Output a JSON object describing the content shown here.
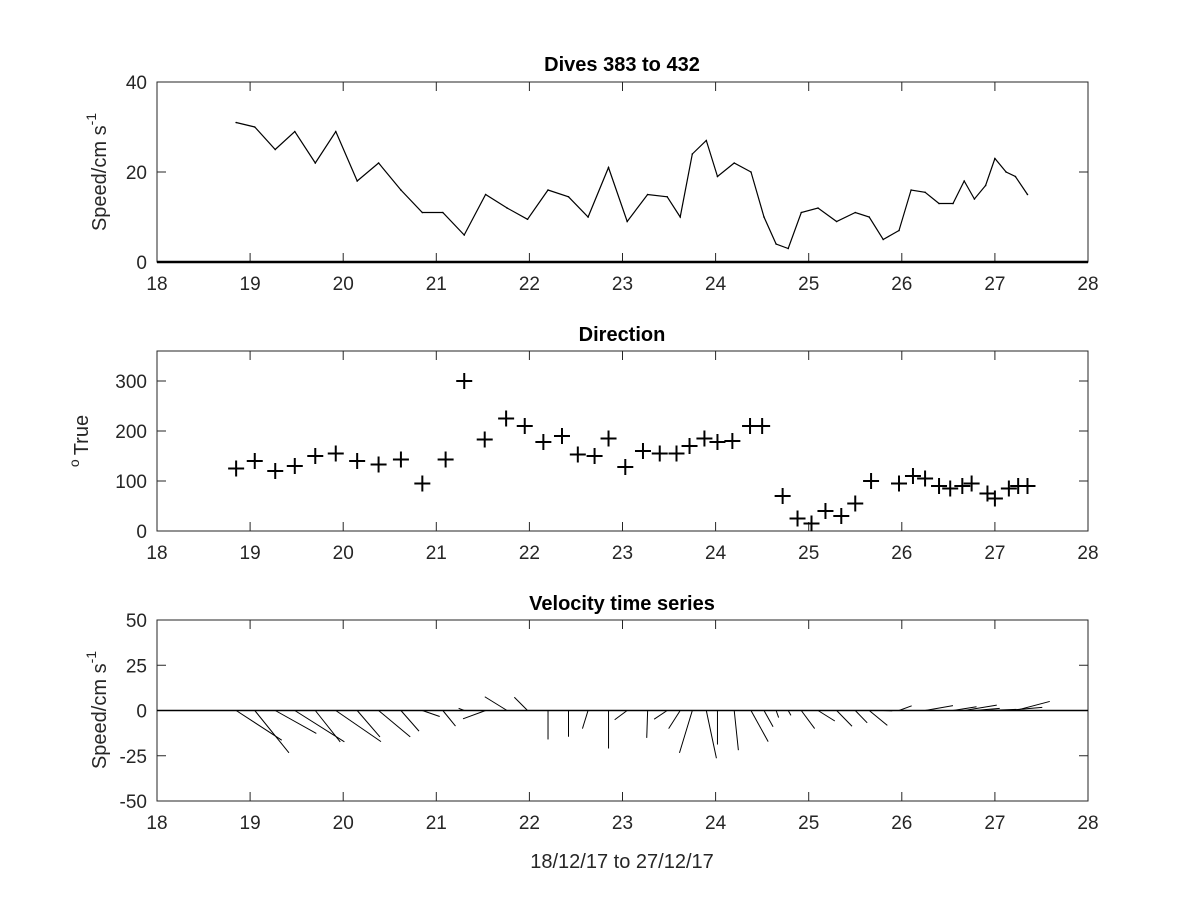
{
  "figure": {
    "background": "#ffffff",
    "line_color": "#000000",
    "axis_color": "#262626"
  },
  "chart_data": [
    {
      "type": "line",
      "title": "Dives 383 to 432",
      "xlabel": "",
      "ylabel": "Speed/cm s",
      "ylabel_superscript": "-1",
      "xlim": [
        18,
        28
      ],
      "ylim": [
        0,
        40
      ],
      "xticks": [
        18,
        19,
        20,
        21,
        22,
        23,
        24,
        25,
        26,
        27,
        28
      ],
      "yticks": [
        0,
        20,
        40
      ],
      "grid": false,
      "series": [
        {
          "x": [
            18.85,
            19.05,
            19.27,
            19.48,
            19.7,
            19.92,
            20.15,
            20.38,
            20.62,
            20.85,
            21.07,
            21.3,
            21.53,
            21.76,
            21.98,
            22.2,
            22.42,
            22.63,
            22.85,
            23.05,
            23.27,
            23.48,
            23.62,
            23.75,
            23.9,
            24.02,
            24.2,
            24.38,
            24.52,
            24.65,
            24.78,
            24.92,
            25.1,
            25.3,
            25.5,
            25.65,
            25.8,
            25.97,
            26.1,
            26.25,
            26.4,
            26.55,
            26.67,
            26.78,
            26.9,
            27.0,
            27.12,
            27.22,
            27.35
          ],
          "y": [
            31,
            30,
            25,
            29,
            22,
            29,
            18,
            22,
            16,
            11,
            11,
            6,
            15,
            12,
            9.5,
            16,
            14.5,
            10,
            21,
            9,
            15,
            14.5,
            10,
            24,
            27,
            19,
            22,
            20,
            10,
            4,
            3,
            11,
            12,
            9,
            11,
            10,
            5,
            7,
            16,
            15.5,
            13,
            13,
            18,
            14,
            17,
            23,
            20,
            19,
            15
          ]
        }
      ]
    },
    {
      "type": "scatter",
      "title": "Direction",
      "xlabel": "",
      "ylabel": "True",
      "ylabel_superscript": "o",
      "marker": "+",
      "xlim": [
        18,
        28
      ],
      "ylim": [
        0,
        360
      ],
      "xticks": [
        18,
        19,
        20,
        21,
        22,
        23,
        24,
        25,
        26,
        27,
        28
      ],
      "yticks": [
        0,
        100,
        200,
        300
      ],
      "grid": false,
      "series": [
        {
          "x": [
            18.85,
            19.05,
            19.27,
            19.48,
            19.7,
            19.92,
            20.15,
            20.38,
            20.62,
            20.85,
            21.1,
            21.3,
            21.52,
            21.75,
            21.95,
            22.15,
            22.35,
            22.52,
            22.7,
            22.85,
            23.03,
            23.22,
            23.4,
            23.58,
            23.72,
            23.88,
            24.02,
            24.18,
            24.37,
            24.5,
            24.72,
            24.88,
            25.03,
            25.18,
            25.35,
            25.5,
            25.67,
            25.97,
            26.12,
            26.25,
            26.4,
            26.52,
            26.65,
            26.75,
            26.92,
            27.0,
            27.15,
            27.25,
            27.35
          ],
          "y": [
            125,
            140,
            120,
            130,
            150,
            155,
            140,
            133,
            143,
            95,
            143,
            300,
            183,
            225,
            210,
            178,
            190,
            153,
            150,
            185,
            128,
            160,
            155,
            155,
            170,
            185,
            178,
            180,
            210,
            210,
            70,
            25,
            15,
            40,
            30,
            55,
            100,
            95,
            110,
            105,
            90,
            85,
            90,
            95,
            75,
            65,
            85,
            90,
            90
          ]
        }
      ]
    },
    {
      "type": "quiver",
      "title": "Velocity time series",
      "xlabel": "18/12/17 to 27/12/17",
      "ylabel": "Speed/cm s",
      "ylabel_superscript": "-1",
      "xlim": [
        18,
        28
      ],
      "ylim": [
        -50,
        50
      ],
      "xticks": [
        18,
        19,
        20,
        21,
        22,
        23,
        24,
        25,
        26,
        27,
        28
      ],
      "yticks": [
        -50,
        -25,
        0,
        25,
        50
      ],
      "grid": false,
      "series": [
        {
          "x": [
            18.85,
            19.05,
            19.27,
            19.48,
            19.7,
            19.92,
            20.15,
            20.38,
            20.62,
            20.85,
            21.07,
            21.3,
            21.53,
            21.76,
            21.98,
            22.2,
            22.42,
            22.63,
            22.85,
            23.05,
            23.27,
            23.48,
            23.62,
            23.75,
            23.9,
            24.02,
            24.2,
            24.38,
            24.52,
            24.65,
            24.78,
            24.92,
            25.1,
            25.3,
            25.5,
            25.65,
            25.8,
            25.97,
            26.1,
            26.25,
            26.4,
            26.55,
            26.67,
            26.78,
            26.9,
            27.0,
            27.12,
            27.22,
            27.35
          ],
          "u": [
            25.2,
            18.9,
            22.7,
            27.4,
            13.8,
            25.0,
            12.6,
            17.5,
            10.0,
            9.6,
            7.0,
            -3.1,
            -12.5,
            -12.3,
            -7.3,
            0.0,
            0.0,
            -3.1,
            0.0,
            -6.9,
            -0.5,
            -7.2,
            -6.4,
            -7.1,
            5.6,
            0.0,
            2.3,
            9.5,
            5.0,
            1.4,
            1.5,
            7.4,
            9.3,
            8.5,
            6.6,
            10.0,
            5.0,
            7.0,
            15.7,
            15.4,
            13.0,
            13.0,
            18.0,
            14.0,
            17.0,
            23.0,
            20.0,
            19.0,
            15.0
          ],
          "v": [
            -16.4,
            -23.4,
            -12.7,
            -17.3,
            -17.4,
            -17.2,
            -14.6,
            -14.6,
            -11.4,
            -3.3,
            -8.6,
            1.2,
            -4.6,
            7.6,
            7.3,
            -16.0,
            -14.5,
            -10.0,
            -21.0,
            -5.1,
            -15.1,
            -4.8,
            -10.0,
            -23.4,
            -26.4,
            -18.8,
            -21.9,
            -17.2,
            -9.0,
            -3.9,
            -2.7,
            -10.0,
            -5.8,
            -8.7,
            -6.8,
            -8.2,
            -0.2,
            2.6,
            0.0,
            2.7,
            0.0,
            2.1,
            3.0,
            1.2,
            0.6,
            0.0,
            1.7,
            5.0,
            0.0
          ]
        }
      ]
    }
  ]
}
